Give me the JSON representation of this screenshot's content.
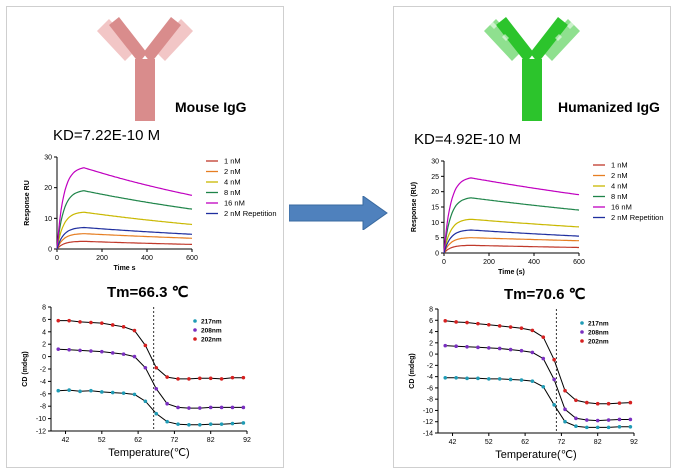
{
  "left": {
    "antibody_label": "Mouse IgG",
    "kd": "KD=7.22E-10 M",
    "tm": "Tm=66.3 ℃",
    "colors": {
      "light": "#f2c6c6",
      "dark": "#d98c8c"
    }
  },
  "right": {
    "antibody_label": "Humanized IgG",
    "kd": "KD=4.92E-10 M",
    "tm": "Tm=70.6 ℃",
    "colors": {
      "light": "#8fe08f",
      "dark": "#2cc42c"
    }
  },
  "arrow_color": "#4f81bd",
  "chart_data": [
    {
      "id": "spr-left",
      "type": "line",
      "xlabel": "Time s",
      "ylabel": "Response RU",
      "xlim": [
        0,
        600
      ],
      "ylim": [
        0,
        30
      ],
      "xticks": [
        0,
        200,
        400,
        600
      ],
      "yticks": [
        0,
        10,
        20,
        30
      ],
      "series": [
        {
          "name": "1 nM",
          "color": "#c0392b",
          "x": [
            0,
            120,
            600
          ],
          "y": [
            0,
            2.5,
            1.5
          ]
        },
        {
          "name": "2 nM",
          "color": "#e67e22",
          "x": [
            0,
            120,
            600
          ],
          "y": [
            0,
            5,
            3.5
          ]
        },
        {
          "name": "4 nM",
          "color": "#c9b800",
          "x": [
            0,
            120,
            600
          ],
          "y": [
            0,
            12,
            8
          ]
        },
        {
          "name": "8 nM",
          "color": "#1e8449",
          "x": [
            0,
            120,
            600
          ],
          "y": [
            0,
            19,
            13
          ]
        },
        {
          "name": "16 nM",
          "color": "#c000c0",
          "x": [
            0,
            120,
            600
          ],
          "y": [
            0,
            26.5,
            17.5
          ]
        },
        {
          "name": "2 nM Repetition",
          "color": "#1f2f9f",
          "x": [
            0,
            120,
            600
          ],
          "y": [
            0,
            7,
            4.8
          ]
        }
      ]
    },
    {
      "id": "spr-right",
      "type": "line",
      "xlabel": "Time (s)",
      "ylabel": "Response (RU)",
      "xlim": [
        0,
        600
      ],
      "ylim": [
        0,
        30
      ],
      "xticks": [
        0,
        200,
        400,
        600
      ],
      "yticks": [
        0,
        5,
        10,
        15,
        20,
        25,
        30
      ],
      "series": [
        {
          "name": "1 nM",
          "color": "#c0392b",
          "x": [
            0,
            120,
            600
          ],
          "y": [
            0,
            2.5,
            1.8
          ]
        },
        {
          "name": "2 nM",
          "color": "#e67e22",
          "x": [
            0,
            120,
            600
          ],
          "y": [
            0,
            5,
            4
          ]
        },
        {
          "name": "4 nM",
          "color": "#c9b800",
          "x": [
            0,
            120,
            600
          ],
          "y": [
            0,
            11,
            8.5
          ]
        },
        {
          "name": "8 nM",
          "color": "#1e8449",
          "x": [
            0,
            120,
            600
          ],
          "y": [
            0,
            18,
            14
          ]
        },
        {
          "name": "16 nM",
          "color": "#c000c0",
          "x": [
            0,
            120,
            600
          ],
          "y": [
            0,
            24.5,
            19
          ]
        },
        {
          "name": "2 nM Repetition",
          "color": "#1f2f9f",
          "x": [
            0,
            120,
            600
          ],
          "y": [
            0,
            7.5,
            5.5
          ]
        }
      ]
    },
    {
      "id": "cd-left",
      "type": "scatter",
      "xlabel": "Temperature(℃)",
      "ylabel": "CD (mdeg)",
      "xlim": [
        38,
        92
      ],
      "ylim": [
        -12,
        8
      ],
      "xticks": [
        42,
        52,
        62,
        72,
        82,
        92
      ],
      "yticks": [
        8,
        6,
        4,
        2,
        0,
        -2,
        -4,
        -6,
        -8,
        -10,
        -12
      ],
      "tm_line": 66.3,
      "x": [
        40,
        43,
        46,
        49,
        52,
        55,
        58,
        61,
        64,
        67,
        70,
        73,
        76,
        79,
        82,
        85,
        88,
        91
      ],
      "series": [
        {
          "name": "217nm",
          "color": "#1f9bb5",
          "y": [
            -5.5,
            -5.4,
            -5.6,
            -5.5,
            -5.7,
            -5.8,
            -5.9,
            -6.1,
            -7.2,
            -9.2,
            -10.5,
            -10.9,
            -11.0,
            -11.0,
            -10.9,
            -10.9,
            -10.8,
            -10.7
          ]
        },
        {
          "name": "208nm",
          "color": "#7a2fc0",
          "y": [
            1.2,
            1.1,
            1.0,
            0.9,
            0.8,
            0.6,
            0.4,
            0.0,
            -1.8,
            -5.2,
            -7.6,
            -8.2,
            -8.3,
            -8.3,
            -8.2,
            -8.2,
            -8.2,
            -8.2
          ]
        },
        {
          "name": "202nm",
          "color": "#d62020",
          "y": [
            5.8,
            5.8,
            5.6,
            5.5,
            5.4,
            5.1,
            4.8,
            4.2,
            1.8,
            -1.8,
            -3.3,
            -3.6,
            -3.6,
            -3.5,
            -3.5,
            -3.6,
            -3.4,
            -3.4
          ]
        }
      ]
    },
    {
      "id": "cd-right",
      "type": "scatter",
      "xlabel": "Temperature(℃)",
      "ylabel": "CD (mdeg)",
      "xlim": [
        38,
        92
      ],
      "ylim": [
        -14,
        8
      ],
      "xticks": [
        42,
        52,
        62,
        72,
        82,
        92
      ],
      "yticks": [
        8,
        6,
        4,
        2,
        0,
        -2,
        -4,
        -6,
        -8,
        -10,
        -12,
        -14
      ],
      "tm_line": 70.6,
      "x": [
        40,
        43,
        46,
        49,
        52,
        55,
        58,
        61,
        64,
        67,
        70,
        73,
        76,
        79,
        82,
        85,
        88,
        91
      ],
      "series": [
        {
          "name": "217nm",
          "color": "#1f9bb5",
          "y": [
            -4.2,
            -4.2,
            -4.3,
            -4.3,
            -4.4,
            -4.4,
            -4.5,
            -4.6,
            -4.8,
            -5.8,
            -9.0,
            -12.0,
            -12.8,
            -13.0,
            -13.0,
            -13.0,
            -12.9,
            -12.9
          ]
        },
        {
          "name": "208nm",
          "color": "#7a2fc0",
          "y": [
            1.5,
            1.4,
            1.3,
            1.2,
            1.1,
            1.0,
            0.8,
            0.6,
            0.3,
            -0.8,
            -4.5,
            -9.8,
            -11.4,
            -11.7,
            -11.8,
            -11.7,
            -11.6,
            -11.6
          ]
        },
        {
          "name": "202nm",
          "color": "#d62020",
          "y": [
            5.9,
            5.7,
            5.6,
            5.4,
            5.2,
            5.0,
            4.8,
            4.6,
            4.2,
            3.0,
            -1.0,
            -6.5,
            -8.2,
            -8.6,
            -8.8,
            -8.8,
            -8.7,
            -8.6
          ]
        }
      ]
    }
  ]
}
